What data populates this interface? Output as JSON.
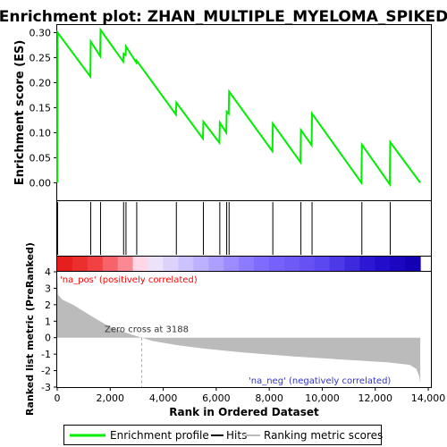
{
  "title": "Enrichment plot: ZHAN_MULTIPLE_MYELOMA_SPIKED",
  "colors": {
    "profile": "#00ee00",
    "hit": "#000000",
    "metric_fill": "#bbbbbb",
    "pos_label": "#ff0000",
    "neg_label": "#3333cc",
    "zero_line": "#aaaaaa"
  },
  "chart_data": [
    {
      "name": "enrichment-profile",
      "type": "line",
      "ylabel": "Enrichment score (ES)",
      "xlim": [
        0,
        14100
      ],
      "ylim": [
        -0.035,
        0.315
      ],
      "yticks": [
        0.0,
        0.05,
        0.1,
        0.15,
        0.2,
        0.25,
        0.3
      ],
      "ytick_labels": [
        "0.00",
        "0.05",
        "0.10",
        "0.15",
        "0.20",
        "0.25",
        "0.30"
      ],
      "x": [
        0,
        15,
        1250,
        1265,
        1620,
        1635,
        2490,
        2505,
        2580,
        2595,
        2985,
        3000,
        4480,
        4495,
        5500,
        5515,
        6120,
        6135,
        6380,
        6395,
        6470,
        6485,
        8120,
        8135,
        9180,
        9195,
        9600,
        9615,
        11480,
        11495,
        12550,
        12565,
        13700
      ],
      "y": [
        0.0,
        0.3,
        0.212,
        0.282,
        0.253,
        0.305,
        0.242,
        0.258,
        0.255,
        0.272,
        0.24,
        0.244,
        0.136,
        0.16,
        0.088,
        0.122,
        0.08,
        0.12,
        0.1,
        0.142,
        0.138,
        0.182,
        0.063,
        0.118,
        0.041,
        0.105,
        0.075,
        0.138,
        0.0,
        0.076,
        -0.003,
        0.081,
        0.0
      ]
    },
    {
      "name": "hits",
      "type": "scatter",
      "x": [
        15,
        1265,
        1635,
        2505,
        2595,
        3000,
        4495,
        5515,
        6135,
        6395,
        6485,
        8135,
        9195,
        9615,
        11495,
        12565
      ]
    },
    {
      "name": "ranking-metric",
      "type": "area",
      "ylabel": "Ranked list metric (PreRanked)",
      "xlabel": "Rank in Ordered Dataset",
      "xlim": [
        0,
        14100
      ],
      "ylim": [
        -3,
        4
      ],
      "yticks": [
        -3,
        -2,
        -1,
        0,
        1,
        2,
        3,
        4
      ],
      "xticks": [
        0,
        2000,
        4000,
        6000,
        8000,
        10000,
        12000,
        14000
      ],
      "xtick_labels": [
        "0",
        "2,000",
        "4,000",
        "6,000",
        "8,000",
        "10,000",
        "12,000",
        "14,000"
      ],
      "x": [
        0,
        30,
        200,
        600,
        1000,
        1500,
        2000,
        2500,
        3188,
        3600,
        4500,
        5500,
        7000,
        9000,
        11000,
        12500,
        13300,
        13550,
        13650,
        13700
      ],
      "y": [
        4.0,
        2.6,
        2.3,
        2.0,
        1.6,
        1.1,
        0.65,
        0.35,
        0.0,
        -0.2,
        -0.45,
        -0.65,
        -0.9,
        -1.15,
        -1.35,
        -1.5,
        -1.65,
        -1.9,
        -2.3,
        -2.75
      ],
      "zero_cross": 3188
    }
  ],
  "annotations": {
    "zero_cross": "Zero cross at 3188",
    "pos": "'na_pos' (positively correlated)",
    "neg": "'na_neg' (negatively correlated)"
  },
  "legend": {
    "items": [
      {
        "label": "Enrichment profile",
        "symbol": "green-line"
      },
      {
        "label": "Hits",
        "symbol": "black-line"
      },
      {
        "label": "Ranking metric scores",
        "symbol": "gray-line"
      }
    ]
  }
}
